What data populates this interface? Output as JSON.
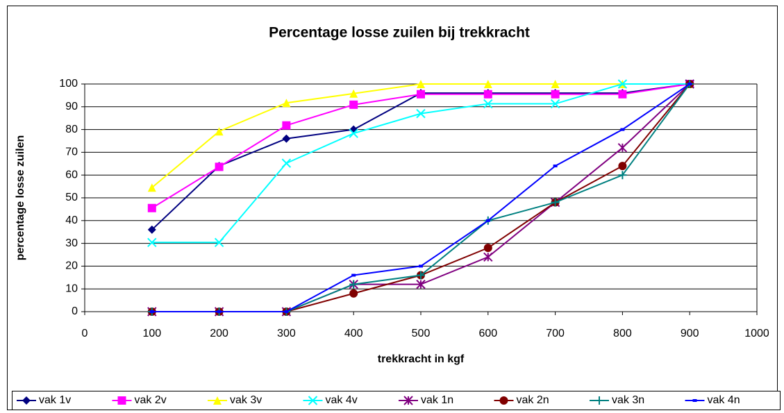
{
  "chart_data": {
    "type": "line",
    "title": "Percentage losse zuilen bij trekkracht",
    "x_label": "trekkracht in kgf",
    "y_label": "percentage losse zuilen",
    "x": [
      100,
      200,
      300,
      400,
      500,
      600,
      700,
      800,
      900
    ],
    "series": [
      {
        "name": "vak 1v",
        "color": "#000080",
        "marker": "diamond",
        "values": [
          36,
          64,
          76,
          80,
          96,
          96,
          96,
          96,
          100
        ]
      },
      {
        "name": "vak 2v",
        "color": "#ff00ff",
        "marker": "square",
        "values": [
          45.5,
          63.6,
          81.8,
          90.9,
          95.5,
          95.5,
          95.5,
          95.5,
          100
        ]
      },
      {
        "name": "vak 3v",
        "color": "#ffff00",
        "marker": "triangle",
        "values": [
          54.5,
          79.2,
          91.7,
          95.8,
          100,
          100,
          100,
          100,
          100
        ]
      },
      {
        "name": "vak 4v",
        "color": "#00ffff",
        "marker": "x",
        "values": [
          30.4,
          30.4,
          65.2,
          78.3,
          87,
          91.3,
          91.3,
          100,
          100
        ]
      },
      {
        "name": "vak 1n",
        "color": "#800080",
        "marker": "star",
        "values": [
          0,
          0,
          0,
          12,
          12,
          24,
          48,
          72,
          100
        ]
      },
      {
        "name": "vak 2n",
        "color": "#800000",
        "marker": "circle",
        "values": [
          0,
          0,
          0,
          8,
          16,
          28,
          48,
          64,
          100
        ]
      },
      {
        "name": "vak 3n",
        "color": "#008080",
        "marker": "plus",
        "values": [
          0,
          0,
          0,
          12,
          16,
          40,
          48,
          60,
          100
        ]
      },
      {
        "name": "vak 4n",
        "color": "#0000ff",
        "marker": "dash",
        "values": [
          0,
          0,
          0,
          16,
          20,
          40,
          64,
          80,
          100
        ]
      }
    ],
    "xlim": [
      0,
      1000
    ],
    "xticks": [
      0,
      100,
      200,
      300,
      400,
      500,
      600,
      700,
      800,
      900,
      1000
    ],
    "ylim": [
      0,
      100
    ],
    "yticks": [
      0,
      10,
      20,
      30,
      40,
      50,
      60,
      70,
      80,
      90,
      100
    ],
    "grid": true,
    "legend": "bottom"
  }
}
